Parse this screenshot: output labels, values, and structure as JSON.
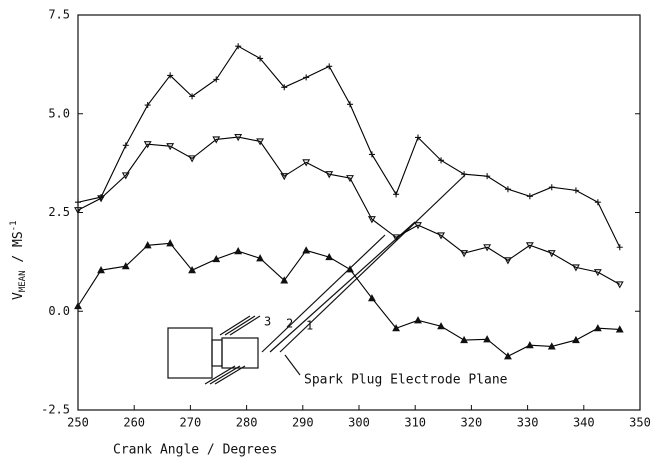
{
  "chart_data": {
    "type": "line",
    "xlabel": "Crank Angle / Degrees",
    "ylabel": {
      "main": "V",
      "sub": "MEAN",
      "unit": " / MS",
      "sup": "-1"
    },
    "xlim": [
      250,
      350
    ],
    "xticks": [
      250,
      260,
      270,
      280,
      290,
      300,
      310,
      320,
      330,
      340,
      350
    ],
    "ylim": [
      -2.5,
      7.5
    ],
    "yticks": [
      -2.5,
      {
        "value": 0,
        "label": "0.0"
      },
      2.5,
      {
        "value": 5,
        "label": "5.0"
      },
      7.5
    ],
    "annotations": [
      "3",
      "2",
      "1",
      "Spark Plug Electrode Plane"
    ],
    "series": [
      {
        "color": "#000000",
        "marker": "plus",
        "x": [
          250,
          254.1,
          258.5,
          262.4,
          266.4,
          270.3,
          274.6,
          278.5,
          282.4,
          286.7,
          290.6,
          294.7,
          298.4,
          302.3,
          306.6,
          310.5,
          314.6,
          318.7,
          322.8,
          326.5,
          330.4,
          334.3,
          338.6,
          342.5,
          346.4
        ],
        "values": [
          2.76,
          2.89,
          4.2,
          5.22,
          5.97,
          5.44,
          5.87,
          6.71,
          6.4,
          5.67,
          5.92,
          6.2,
          5.24,
          3.97,
          2.96,
          4.4,
          3.82,
          3.47,
          3.42,
          3.09,
          2.91,
          3.14,
          3.06,
          2.76,
          1.62
        ]
      },
      {
        "color": "#000000",
        "marker": "triangle-down",
        "x": [
          250,
          254.1,
          258.5,
          262.4,
          266.4,
          270.3,
          274.6,
          278.5,
          282.4,
          286.7,
          290.6,
          294.7,
          298.4,
          302.3,
          306.6,
          310.5,
          314.6,
          318.7,
          322.8,
          326.5,
          330.4,
          334.3,
          338.6,
          342.5,
          346.4
        ],
        "values": [
          2.56,
          2.86,
          3.44,
          4.23,
          4.18,
          3.87,
          4.35,
          4.41,
          4.3,
          3.42,
          3.77,
          3.47,
          3.37,
          2.33,
          1.87,
          2.18,
          1.92,
          1.47,
          1.62,
          1.29,
          1.67,
          1.47,
          1.11,
          0.99,
          0.68
        ]
      },
      {
        "color": "#000000",
        "marker": "triangle-up",
        "x": [
          250,
          254.1,
          258.5,
          262.4,
          266.4,
          270.3,
          274.6,
          278.5,
          282.4,
          286.7,
          290.6,
          294.7,
          298.4,
          302.3,
          306.6,
          310.5,
          314.6,
          318.7,
          322.8,
          326.5,
          330.4,
          334.3,
          338.6,
          342.5,
          346.4
        ],
        "values": [
          0.13,
          1.04,
          1.14,
          1.67,
          1.72,
          1.04,
          1.32,
          1.52,
          1.34,
          0.78,
          1.54,
          1.37,
          1.06,
          0.33,
          -0.43,
          -0.23,
          -0.38,
          -0.73,
          -0.71,
          -1.14,
          -0.86,
          -0.89,
          -0.73,
          -0.43,
          -0.46
        ]
      }
    ]
  }
}
